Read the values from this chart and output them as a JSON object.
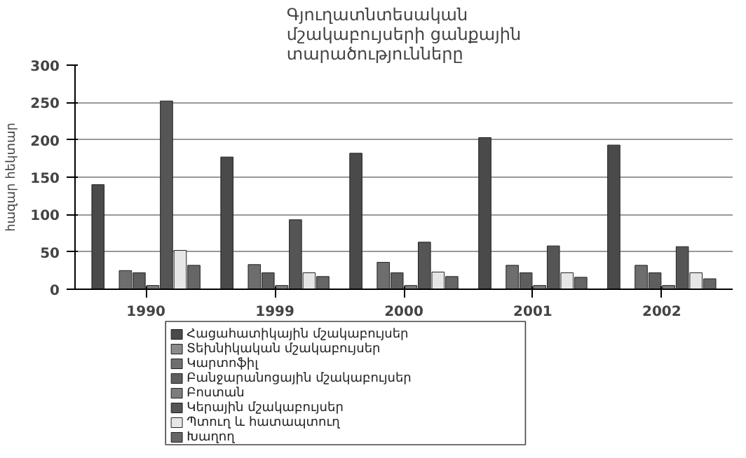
{
  "chart_data": {
    "type": "bar",
    "title": "Գյուղատնտեսական մշակաբույսերի ցանքային տարածությունները",
    "ylabel": "հազար հեկտար",
    "categories": [
      "1990",
      "1999",
      "2000",
      "2001",
      "2002"
    ],
    "series": [
      {
        "name": "Հացահատիկային մշակաբույսեր",
        "color": "#4a4a4a",
        "values": [
          140,
          177,
          182,
          203,
          193
        ]
      },
      {
        "name": "Տեխնիկական մշակաբույսեր",
        "color": "#8a8a8a",
        "values": [
          null,
          null,
          null,
          null,
          null
        ]
      },
      {
        "name": "Կարտոֆիլ",
        "color": "#6e6e6e",
        "values": [
          25,
          33,
          36,
          32,
          32
        ]
      },
      {
        "name": "Բանջարանոցային մշակաբույսեր",
        "color": "#5e5e5e",
        "values": [
          22,
          22,
          22,
          22,
          22
        ]
      },
      {
        "name": "Բոստան",
        "color": "#7c7c7c",
        "values": [
          5,
          5,
          5,
          5,
          5
        ]
      },
      {
        "name": "Կերային մշակաբույսեր",
        "color": "#555555",
        "values": [
          252,
          93,
          63,
          58,
          57
        ]
      },
      {
        "name": "Պտուղ և հատապտուղ",
        "color": "#e6e6e6",
        "values": [
          52,
          22,
          23,
          22,
          22
        ]
      },
      {
        "name": "Խաղող",
        "color": "#666666",
        "values": [
          32,
          17,
          17,
          16,
          14
        ]
      }
    ],
    "ylim": [
      0,
      300
    ],
    "yticks": [
      0,
      50,
      100,
      150,
      200,
      250,
      300
    ],
    "grid": "y",
    "legend": "bottom"
  }
}
